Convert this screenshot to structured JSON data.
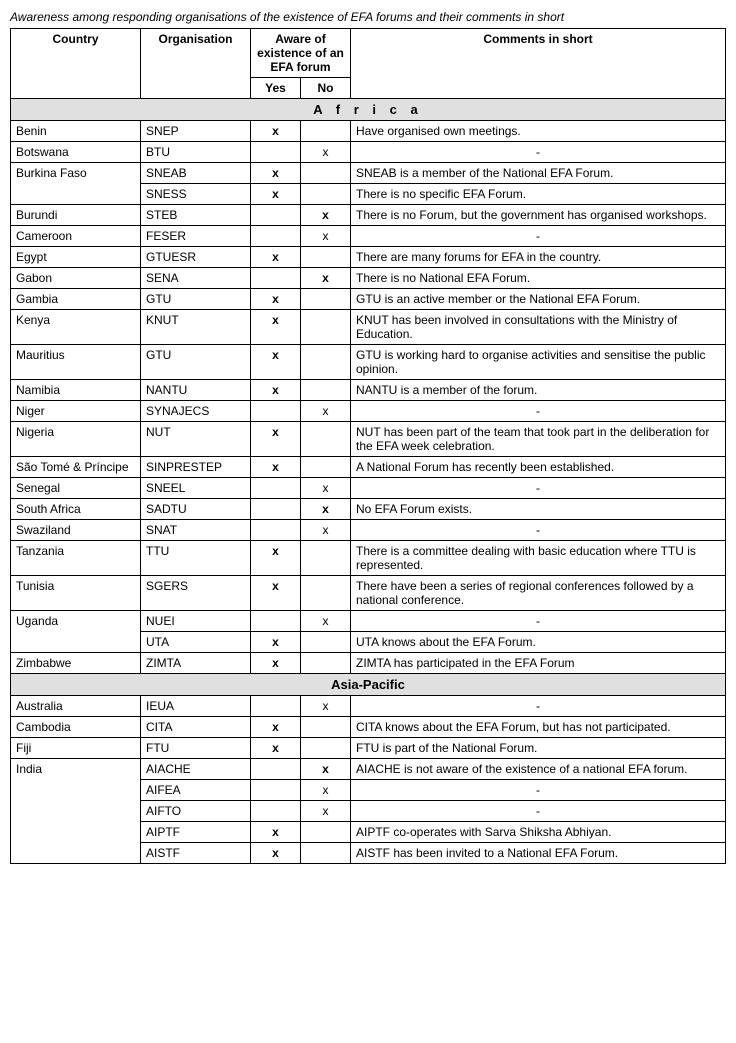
{
  "caption": "Awareness among responding organisations of the existence of EFA forums and their comments in short",
  "headers": {
    "country": "Country",
    "organisation": "Organisation",
    "aware": "Aware of existence of an EFA forum",
    "yes": "Yes",
    "no": "No",
    "comments": "Comments in short"
  },
  "regions": [
    {
      "name": "A f r i c a",
      "cssClass": "region-africa",
      "rows": [
        {
          "country": "Benin",
          "org": "SNEP",
          "yes": "x_bold",
          "no": "",
          "comment": "Have organised own meetings."
        },
        {
          "country": "Botswana",
          "org": "BTU",
          "yes": "",
          "no": "x_small",
          "comment": "-"
        },
        {
          "country": "Burkina Faso",
          "org": "SNEAB",
          "yes": "x_bold",
          "no": "",
          "comment": "SNEAB is a member of the National EFA Forum.",
          "rowspan": 2
        },
        {
          "country": "",
          "org": "SNESS",
          "yes": "x_bold",
          "no": "",
          "comment": "There is no specific EFA Forum."
        },
        {
          "country": "Burundi",
          "org": "STEB",
          "yes": "",
          "no": "x_bold",
          "comment": "There is no Forum, but the government has organised workshops."
        },
        {
          "country": "Cameroon",
          "org": "FESER",
          "yes": "",
          "no": "x_small",
          "comment": "-"
        },
        {
          "country": "Egypt",
          "org": "GTUESR",
          "yes": "x_bold",
          "no": "",
          "comment": "There are many forums for EFA in the country."
        },
        {
          "country": "Gabon",
          "org": "SENA",
          "yes": "",
          "no": "x_bold",
          "comment": "There is no National EFA Forum."
        },
        {
          "country": "Gambia",
          "org": "GTU",
          "yes": "x_bold",
          "no": "",
          "comment": "GTU is an active member or the National EFA Forum."
        },
        {
          "country": "Kenya",
          "org": "KNUT",
          "yes": "x_bold",
          "no": "",
          "comment": "KNUT has been involved in consultations with the Ministry of Education."
        },
        {
          "country": "Mauritius",
          "org": "GTU",
          "yes": "x_bold",
          "no": "",
          "comment": "GTU is working hard to organise activities and sensitise the public opinion."
        },
        {
          "country": "Namibia",
          "org": "NANTU",
          "yes": "x_bold",
          "no": "",
          "comment": "NANTU is a member of the forum."
        },
        {
          "country": "Niger",
          "org": "SYNAJECS",
          "yes": "",
          "no": "x_small",
          "comment": "-"
        },
        {
          "country": "Nigeria",
          "org": "NUT",
          "yes": "x_bold",
          "no": "",
          "comment": "NUT has been part of the team that took part in the deliberation for the EFA week celebration."
        },
        {
          "country": "São Tomé & Príncipe",
          "org": "SINPRESTEP",
          "yes": "x_bold",
          "no": "",
          "comment": "A National Forum has recently been established."
        },
        {
          "country": "Senegal",
          "org": "SNEEL",
          "yes": "",
          "no": "x_small",
          "comment": "-"
        },
        {
          "country": "South Africa",
          "org": "SADTU",
          "yes": "",
          "no": "x_bold",
          "comment": "No EFA Forum exists."
        },
        {
          "country": "Swaziland",
          "org": "SNAT",
          "yes": "",
          "no": "x_small",
          "comment": "-"
        },
        {
          "country": "Tanzania",
          "org": "TTU",
          "yes": "x_bold",
          "no": "",
          "comment": "There is a committee dealing with basic education where TTU is represented."
        },
        {
          "country": "Tunisia",
          "org": "SGERS",
          "yes": "x_bold",
          "no": "",
          "comment": "There have been a series of regional conferences followed by a national conference."
        },
        {
          "country": "Uganda",
          "org": "NUEI",
          "yes": "",
          "no": "x_small",
          "comment": "-",
          "rowspan": 2
        },
        {
          "country": "",
          "org": "UTA",
          "yes": "x_bold",
          "no": "",
          "comment": "UTA knows about the EFA Forum."
        },
        {
          "country": "Zimbabwe",
          "org": "ZIMTA",
          "yes": "x_bold",
          "no": "",
          "comment": "ZIMTA has participated in the EFA Forum"
        }
      ]
    },
    {
      "name": "Asia-Pacific",
      "cssClass": "",
      "rows": [
        {
          "country": "Australia",
          "org": "IEUA",
          "yes": "",
          "no": "x_small",
          "comment": "-"
        },
        {
          "country": "Cambodia",
          "org": "CITA",
          "yes": "x_bold",
          "no": "",
          "comment": "CITA knows about the EFA Forum, but has not participated."
        },
        {
          "country": "Fiji",
          "org": "FTU",
          "yes": "x_bold",
          "no": "",
          "comment": "FTU is part of the National Forum."
        },
        {
          "country": "India",
          "org": "AIACHE",
          "yes": "",
          "no": "x_bold",
          "comment": "AIACHE is not aware of the existence of a national EFA forum.",
          "rowspan": 5
        },
        {
          "country": "",
          "org": "AIFEA",
          "yes": "",
          "no": "x_small",
          "comment": "-"
        },
        {
          "country": "",
          "org": "AIFTO",
          "yes": "",
          "no": "x_small",
          "comment": "-"
        },
        {
          "country": "",
          "org": "AIPTF",
          "yes": "x_bold",
          "no": "",
          "comment": "AIPTF co-operates with Sarva Shiksha Abhiyan."
        },
        {
          "country": "",
          "org": "AISTF",
          "yes": "x_bold",
          "no": "",
          "comment": "AISTF has been invited to a National EFA Forum."
        }
      ]
    }
  ]
}
